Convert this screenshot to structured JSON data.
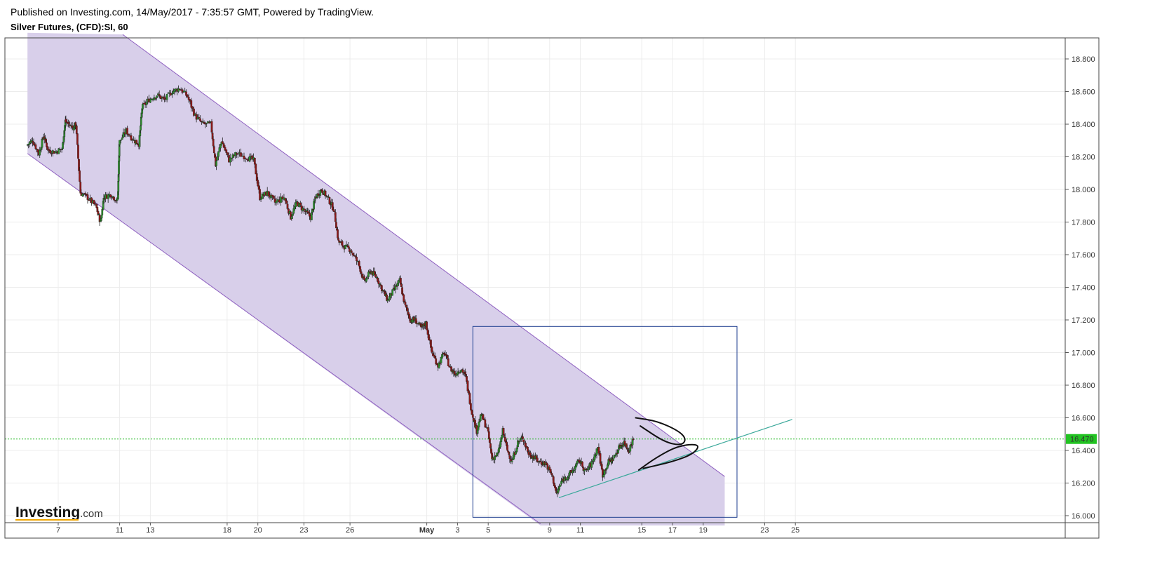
{
  "header": {
    "published": "Published on Investing.com, 14/May/2017 - 7:35:57 GMT, Powered by TradingView.",
    "instrument": "Silver Futures, (CFD):SI, 60"
  },
  "brand": {
    "name": "Investing",
    "suffix": ".com"
  },
  "colors": {
    "up": "#2e8b2e",
    "down": "#8b1a1a",
    "channel_fill": "#d8cfea",
    "channel_line": "#8e5fc0",
    "box": "#1f3f8f",
    "trendline": "#3aa89a",
    "price_line": "#22b822",
    "price_label_bg": "#22c322",
    "drawing": "#111111"
  },
  "chart_data": {
    "type": "candlestick",
    "timeframe": "60",
    "x_axis": {
      "labels": [
        {
          "day": 7,
          "text": "7"
        },
        {
          "day": 11,
          "text": "11"
        },
        {
          "day": 13,
          "text": "13"
        },
        {
          "day": 18,
          "text": "18"
        },
        {
          "day": 20,
          "text": "20"
        },
        {
          "day": 23,
          "text": "23"
        },
        {
          "day": 26,
          "text": "26"
        },
        {
          "day": 31,
          "text": "May"
        },
        {
          "day": 33,
          "text": "3"
        },
        {
          "day": 35,
          "text": "5"
        },
        {
          "day": 39,
          "text": "9"
        },
        {
          "day": 41,
          "text": "11"
        },
        {
          "day": 45,
          "text": "15"
        },
        {
          "day": 47,
          "text": "17"
        },
        {
          "day": 49,
          "text": "19"
        },
        {
          "day": 53,
          "text": "23"
        },
        {
          "day": 55,
          "text": "25"
        }
      ]
    },
    "y_axis": {
      "min": 15.94,
      "max": 18.96,
      "ticks": [
        "18.800",
        "18.600",
        "18.400",
        "18.200",
        "18.000",
        "17.800",
        "17.600",
        "17.400",
        "17.200",
        "17.000",
        "16.800",
        "16.600",
        "16.400",
        "16.200",
        "16.000"
      ]
    },
    "last_price": 16.47,
    "last_price_label": "16.470",
    "price_path": [
      [
        5.0,
        18.27
      ],
      [
        5.4,
        18.3
      ],
      [
        5.8,
        18.22
      ],
      [
        6.1,
        18.33
      ],
      [
        6.4,
        18.24
      ],
      [
        6.9,
        18.23
      ],
      [
        7.3,
        18.25
      ],
      [
        7.5,
        18.42
      ],
      [
        8.0,
        18.38
      ],
      [
        8.2,
        18.4
      ],
      [
        8.5,
        17.98
      ],
      [
        9.0,
        17.95
      ],
      [
        9.5,
        17.9
      ],
      [
        9.8,
        17.8
      ],
      [
        10.0,
        17.95
      ],
      [
        10.5,
        17.97
      ],
      [
        10.9,
        17.93
      ],
      [
        11.0,
        18.28
      ],
      [
        11.5,
        18.36
      ],
      [
        12.0,
        18.3
      ],
      [
        12.3,
        18.28
      ],
      [
        12.5,
        18.5
      ],
      [
        13.0,
        18.55
      ],
      [
        13.5,
        18.58
      ],
      [
        14.0,
        18.55
      ],
      [
        14.5,
        18.6
      ],
      [
        15.0,
        18.62
      ],
      [
        15.5,
        18.57
      ],
      [
        16.0,
        18.45
      ],
      [
        16.5,
        18.4
      ],
      [
        17.0,
        18.4
      ],
      [
        17.3,
        18.15
      ],
      [
        17.7,
        18.3
      ],
      [
        18.2,
        18.18
      ],
      [
        18.7,
        18.22
      ],
      [
        19.3,
        18.2
      ],
      [
        19.8,
        18.18
      ],
      [
        20.2,
        17.95
      ],
      [
        20.7,
        17.98
      ],
      [
        21.2,
        17.92
      ],
      [
        21.8,
        17.95
      ],
      [
        22.2,
        17.83
      ],
      [
        22.6,
        17.92
      ],
      [
        23.1,
        17.87
      ],
      [
        23.5,
        17.83
      ],
      [
        23.8,
        17.95
      ],
      [
        24.2,
        18.0
      ],
      [
        24.6,
        17.95
      ],
      [
        25.0,
        17.88
      ],
      [
        25.3,
        17.68
      ],
      [
        25.7,
        17.65
      ],
      [
        26.1,
        17.63
      ],
      [
        26.6,
        17.55
      ],
      [
        27.0,
        17.43
      ],
      [
        27.4,
        17.5
      ],
      [
        27.8,
        17.46
      ],
      [
        28.2,
        17.38
      ],
      [
        28.5,
        17.32
      ],
      [
        28.9,
        17.38
      ],
      [
        29.3,
        17.44
      ],
      [
        29.6,
        17.3
      ],
      [
        30.0,
        17.2
      ],
      [
        30.3,
        17.2
      ],
      [
        30.7,
        17.15
      ],
      [
        31.0,
        17.18
      ],
      [
        31.4,
        17.0
      ],
      [
        31.8,
        16.92
      ],
      [
        32.2,
        17.0
      ],
      [
        32.6,
        16.9
      ],
      [
        32.9,
        16.87
      ],
      [
        33.3,
        16.9
      ],
      [
        33.6,
        16.85
      ],
      [
        34.0,
        16.63
      ],
      [
        34.3,
        16.52
      ],
      [
        34.6,
        16.62
      ],
      [
        35.0,
        16.53
      ],
      [
        35.3,
        16.35
      ],
      [
        35.7,
        16.38
      ],
      [
        36.0,
        16.52
      ],
      [
        36.3,
        16.4
      ],
      [
        36.6,
        16.33
      ],
      [
        37.0,
        16.45
      ],
      [
        37.3,
        16.48
      ],
      [
        37.7,
        16.38
      ],
      [
        38.0,
        16.36
      ],
      [
        38.4,
        16.33
      ],
      [
        38.8,
        16.32
      ],
      [
        39.2,
        16.25
      ],
      [
        39.5,
        16.13
      ],
      [
        39.9,
        16.22
      ],
      [
        40.3,
        16.25
      ],
      [
        40.6,
        16.28
      ],
      [
        41.0,
        16.34
      ],
      [
        41.4,
        16.27
      ],
      [
        41.8,
        16.32
      ],
      [
        42.2,
        16.42
      ],
      [
        42.5,
        16.25
      ],
      [
        42.9,
        16.33
      ],
      [
        43.2,
        16.35
      ],
      [
        43.6,
        16.42
      ],
      [
        43.9,
        16.45
      ],
      [
        44.2,
        16.4
      ],
      [
        44.5,
        16.47
      ]
    ],
    "channel": {
      "upper": [
        [
          11.2,
          18.95
        ],
        [
          50.4,
          16.24
        ]
      ],
      "lower": [
        [
          5.0,
          18.22
        ],
        [
          38.4,
          15.95
        ]
      ],
      "bottom_right_day": 50.4,
      "left_day": 5.0
    },
    "box": {
      "x1": 34.0,
      "x2": 51.2,
      "y1": 17.16,
      "y2": 15.99
    },
    "trendline": [
      [
        39.6,
        16.11
      ],
      [
        54.8,
        16.59
      ]
    ],
    "drawings": [
      {
        "name": "arc-down",
        "points": [
          [
            44.6,
            16.6
          ],
          [
            46.0,
            16.58
          ],
          [
            47.4,
            16.52
          ],
          [
            47.9,
            16.47
          ],
          [
            47.6,
            16.43
          ],
          [
            46.5,
            16.45
          ],
          [
            44.9,
            16.55
          ]
        ]
      },
      {
        "name": "arc-up",
        "points": [
          [
            44.8,
            16.28
          ],
          [
            46.0,
            16.36
          ],
          [
            47.4,
            16.43
          ],
          [
            48.8,
            16.44
          ],
          [
            48.4,
            16.38
          ],
          [
            47.0,
            16.33
          ],
          [
            45.1,
            16.29
          ]
        ]
      }
    ]
  }
}
